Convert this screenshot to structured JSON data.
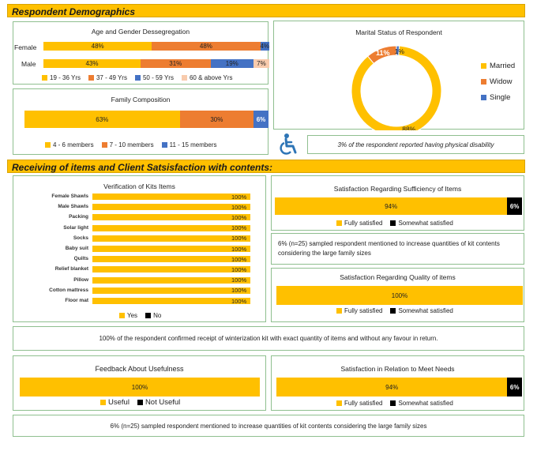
{
  "colors": {
    "yellow": "#FFC000",
    "orange": "#ED7D31",
    "blue": "#4472C4",
    "peach": "#F8CBAD",
    "black": "#000000"
  },
  "headers": {
    "demographics": "Respondent Demographics",
    "receiving": "Receiving of items and Client Satsisfaction with contents:"
  },
  "chart_data": [
    {
      "type": "bar",
      "title": "Age and Gender Dessegregation",
      "categories": [
        "Female",
        "Male"
      ],
      "series": [
        {
          "name": "19 - 36 Yrs",
          "values": [
            48,
            43
          ],
          "labels": [
            "48%",
            "43%"
          ]
        },
        {
          "name": "37 - 49 Yrs",
          "values": [
            48,
            31
          ],
          "labels": [
            "48%",
            "31%"
          ]
        },
        {
          "name": "50 - 59 Yrs",
          "values": [
            4,
            19
          ],
          "labels": [
            "4%",
            "19%"
          ]
        },
        {
          "name": "60 & above Yrs",
          "values": [
            0,
            7
          ],
          "labels": [
            "",
            "7%"
          ]
        }
      ]
    },
    {
      "type": "bar",
      "title": "Family Composition",
      "series": [
        {
          "name": "4 - 6 members",
          "values": [
            63
          ],
          "labels": [
            "63%"
          ]
        },
        {
          "name": "7 - 10 members",
          "values": [
            30
          ],
          "labels": [
            "30%"
          ]
        },
        {
          "name": "11 - 15 members",
          "values": [
            6
          ],
          "labels": [
            "6%"
          ]
        }
      ]
    },
    {
      "type": "pie",
      "title": "Marital Status of Respondent",
      "categories": [
        "Married",
        "Widow",
        "Single"
      ],
      "values": [
        88,
        11,
        1
      ],
      "labels": [
        "88%",
        "11%",
        "1%"
      ]
    },
    {
      "type": "bar",
      "title": "Verification of Kits Items",
      "categories": [
        "Female Shawls",
        "Male Shawls",
        "Packing",
        "Solar light",
        "Socks",
        "Baby suit",
        "Quilts",
        "Relief blanket",
        "Pillow",
        "Cotton mattress",
        "Floor mat"
      ],
      "series": [
        {
          "name": "Yes",
          "values": [
            100,
            100,
            100,
            100,
            100,
            100,
            100,
            100,
            100,
            100,
            100
          ],
          "labels": [
            "100%",
            "100%",
            "100%",
            "100%",
            "100%",
            "100%",
            "100%",
            "100%",
            "100%",
            "100%",
            "100%"
          ]
        },
        {
          "name": "No",
          "values": [
            0,
            0,
            0,
            0,
            0,
            0,
            0,
            0,
            0,
            0,
            0
          ]
        }
      ]
    },
    {
      "type": "bar",
      "title": "Satisfaction Regarding Sufficiency of Items",
      "series": [
        {
          "name": "Fully satisfied",
          "values": [
            94
          ],
          "labels": [
            "94%"
          ]
        },
        {
          "name": "Somewhat satisfied",
          "values": [
            6
          ],
          "labels": [
            "6%"
          ]
        }
      ]
    },
    {
      "type": "bar",
      "title": "Satisfaction Regarding Quality of items",
      "series": [
        {
          "name": "Fully satisfied",
          "values": [
            100
          ],
          "labels": [
            "100%"
          ]
        },
        {
          "name": "Somewhat satisfied",
          "values": [
            0
          ]
        }
      ]
    },
    {
      "type": "bar",
      "title": "Feedback About Usefulness",
      "series": [
        {
          "name": "Useful",
          "values": [
            100
          ],
          "labels": [
            "100%"
          ]
        },
        {
          "name": "Not Useful",
          "values": [
            0
          ]
        }
      ]
    },
    {
      "type": "bar",
      "title": "Satisfaction in Relation to Meet Needs",
      "series": [
        {
          "name": "Fully satisfied",
          "values": [
            94
          ],
          "labels": [
            "94%"
          ]
        },
        {
          "name": "Somewhat satisfied",
          "values": [
            6
          ],
          "labels": [
            "6%"
          ]
        }
      ]
    }
  ],
  "notes": {
    "disability": "3% of the respondent reported having physical disability",
    "quantity": "6% (n=25) sampled respondent mentioned to increase quantities of kit contents considering the large family sizes",
    "receipt": "100% of the respondent confirmed receipt of winterization kit with exact quantity of items and without any favour in return.",
    "bottom": "6% (n=25) sampled respondent mentioned to increase quantities of kit contents considering the large family sizes"
  },
  "icons": {
    "disability": "wheelchair-icon"
  }
}
